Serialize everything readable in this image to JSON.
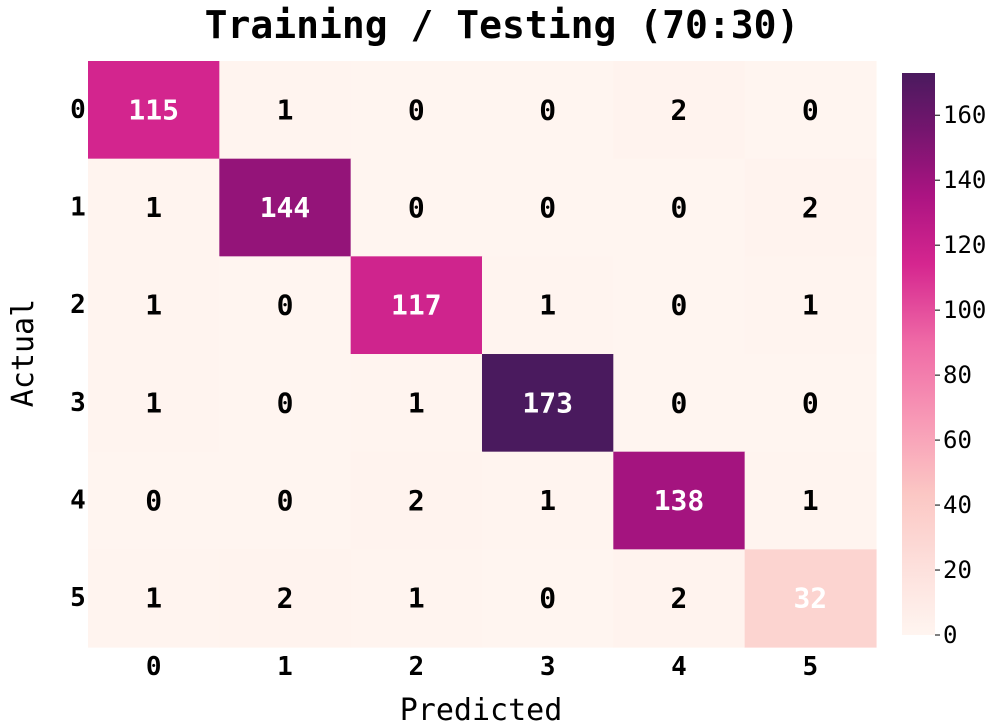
{
  "chart_data": {
    "type": "heatmap",
    "title": "Training / Testing (70:30)",
    "xlabel": "Predicted",
    "ylabel": "Actual",
    "x_categories": [
      "0",
      "1",
      "2",
      "3",
      "4",
      "5"
    ],
    "y_categories": [
      "0",
      "1",
      "2",
      "3",
      "4",
      "5"
    ],
    "values": [
      [
        115,
        1,
        0,
        0,
        2,
        0
      ],
      [
        1,
        144,
        0,
        0,
        0,
        2
      ],
      [
        1,
        0,
        117,
        1,
        0,
        1
      ],
      [
        1,
        0,
        1,
        173,
        0,
        0
      ],
      [
        0,
        0,
        2,
        1,
        138,
        1
      ],
      [
        1,
        2,
        1,
        0,
        2,
        32
      ]
    ],
    "colormap": "RdPu",
    "colorbar": {
      "range": [
        0,
        173
      ],
      "ticks": [
        "0",
        "20",
        "40",
        "60",
        "80",
        "100",
        "120",
        "140",
        "160"
      ]
    },
    "colors": {
      "low": "#fff5f0",
      "high": "#4a1a5e"
    }
  }
}
